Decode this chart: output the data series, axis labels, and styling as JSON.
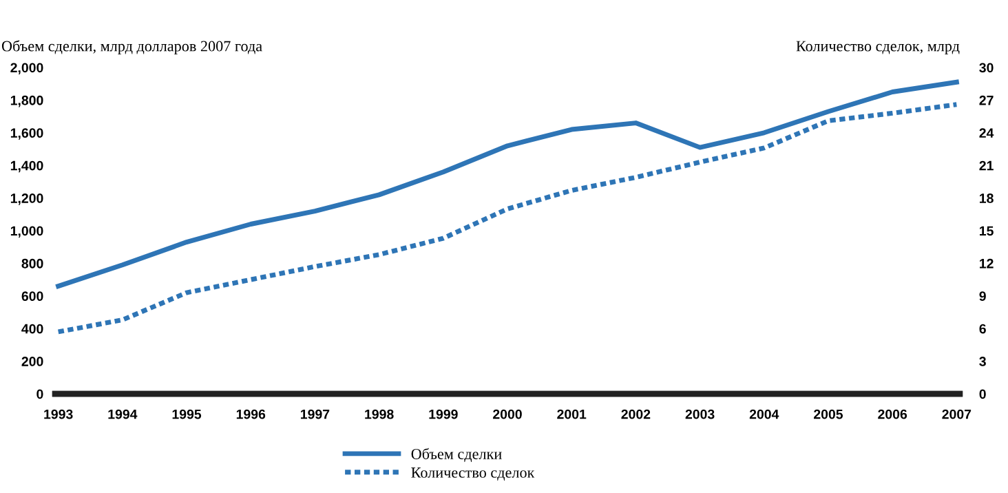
{
  "chart_data": {
    "type": "line",
    "ylabel": "Объем сделки, млрд долларов 2007 года",
    "y2label": "Количество сделок, млрд",
    "categories": [
      "1993",
      "1994",
      "1995",
      "1996",
      "1997",
      "1998",
      "1999",
      "2000",
      "2001",
      "2002",
      "2003",
      "2004",
      "2005",
      "2006",
      "2007"
    ],
    "series": [
      {
        "name": "Объем сделки",
        "color": "#2e75b6",
        "line_style": "solid",
        "values": [
          660,
          790,
          930,
          1040,
          1120,
          1220,
          1360,
          1520,
          1620,
          1660,
          1510,
          1600,
          1730,
          1850,
          1910
        ]
      },
      {
        "name": "Количество сделок",
        "color": "#2e75b6",
        "line_style": "dotted",
        "axis": "y2",
        "values": [
          5.7,
          6.8,
          9.3,
          10.5,
          11.7,
          12.8,
          14.3,
          17.0,
          18.7,
          19.9,
          21.3,
          22.6,
          25.1,
          25.8,
          26.6
        ]
      }
    ],
    "ylim": [
      0,
      2000
    ],
    "yticks": [
      0,
      200,
      400,
      600,
      800,
      {
        "value": 1000,
        "label": "1,000"
      },
      {
        "value": 1200,
        "label": "1,200"
      },
      {
        "value": 1400,
        "label": "1,400"
      },
      {
        "value": 1600,
        "label": "1,600"
      },
      {
        "value": 1800,
        "label": "1,800"
      },
      {
        "value": 2000,
        "label": "2,000"
      }
    ],
    "y2lim": [
      0,
      30
    ],
    "y2ticks": [
      0,
      3,
      6,
      9,
      12,
      15,
      18,
      21,
      24,
      27,
      30
    ],
    "grid": false,
    "legend": "bottom"
  }
}
